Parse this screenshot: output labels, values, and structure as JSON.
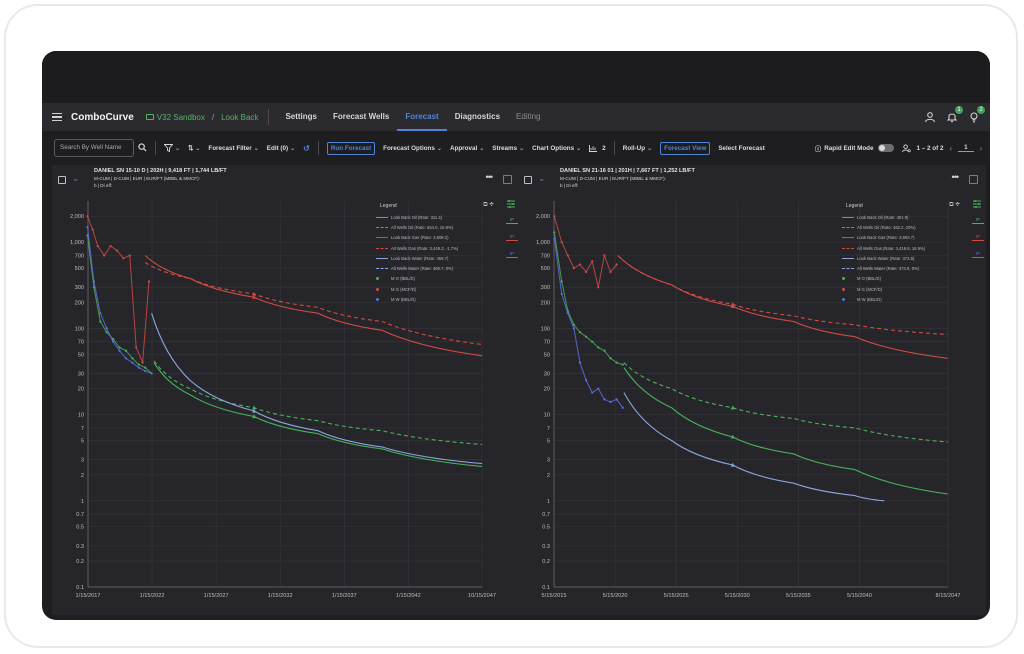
{
  "nav": {
    "brand": "ComboCurve",
    "project": "V32 Sandbox",
    "crumb_sep": "/",
    "scenario": "Look Back",
    "tabs": [
      "Settings",
      "Forecast Wells",
      "Forecast",
      "Diagnostics",
      "Editing"
    ],
    "active_tab": "Forecast",
    "badge1": "1",
    "badge2": "2"
  },
  "toolbar": {
    "search_placeholder": "Search By Well Name",
    "forecast_filter": "Forecast Filter",
    "edit": "Edit (0)",
    "run_forecast": "Run Forecast",
    "forecast_options": "Forecast Options",
    "approval": "Approval",
    "streams": "Streams",
    "chart_options": "Chart Options",
    "chart_count": "2",
    "roll_up": "Roll-Up",
    "forecast_view": "Forecast View",
    "select_forecast": "Select Forecast",
    "rapid_edit": "Rapid Edit Mode",
    "range": "1 – 2 of 2",
    "page": "1"
  },
  "panels": [
    {
      "title": "DANIEL SN 15-10 D | 202H | 9,418 FT | 1,744 LB/FT",
      "line2": "M-CUM | D-CUM | EUR | EUR/FT (MBBL & MMCF):",
      "b_label": "b | Di eff:",
      "legend_title": "Legend",
      "legend": [
        {
          "label": "Look Back Oil (Rate: 311.4)",
          "color": "#47b25b",
          "style": "solid"
        },
        {
          "label": "All Wells Oil (Rate: 554.0, 15.9%)",
          "color": "#47b25b",
          "style": "dash"
        },
        {
          "label": "Look Back Gas (Rate: 3,508.2)",
          "color": "#d24a43",
          "style": "solid"
        },
        {
          "label": "All Wells Gas (Rate: 3,449.3, -1.7%)",
          "color": "#d24a43",
          "style": "dash"
        },
        {
          "label": "Look Back Water (Rate: 459.7)",
          "color": "#8aa6e0",
          "style": "solid"
        },
        {
          "label": "All Wells Water (Rate: 469.7, 0%)",
          "color": "#8aa6e0",
          "style": "dash"
        },
        {
          "label": "M O (BBL/D)",
          "color": "#47b25b",
          "style": "dot"
        },
        {
          "label": "M G (MCF/D)",
          "color": "#d24a43",
          "style": "dot"
        },
        {
          "label": "M W (BBL/D)",
          "color": "#5a70e6",
          "style": "dot"
        }
      ],
      "x_ticks": [
        "1/15/2017",
        "1/15/2022",
        "1/15/2027",
        "1/15/2032",
        "1/15/2037",
        "1/15/2042",
        "10/15/2047"
      ]
    },
    {
      "title": "DANIEL SN 21-16 01 | 201H | 7,667 FT | 1,252 LB/FT",
      "line2": "M-CUM | D-CUM | EUR | EUR/FT (MBBL & MMCF):",
      "b_label": "b | Di eff:",
      "legend_title": "Legend",
      "legend": [
        {
          "label": "Look Back Oil (Rate: 401.9)",
          "color": "#47b25b",
          "style": "solid"
        },
        {
          "label": "All Wells Oil (Rate: 482.2, 20%)",
          "color": "#47b25b",
          "style": "dash"
        },
        {
          "label": "Look Back Gas (Rate: 3,693.7)",
          "color": "#d24a43",
          "style": "solid"
        },
        {
          "label": "All Wells Gas (Rate: 3,419.8, 16.9%)",
          "color": "#d24a43",
          "style": "dash"
        },
        {
          "label": "Look Back Water (Rate: 373.8)",
          "color": "#8aa6e0",
          "style": "solid"
        },
        {
          "label": "All Wells Water (Rate: 373.6, 0%)",
          "color": "#8aa6e0",
          "style": "dash"
        },
        {
          "label": "M O (BBL/D)",
          "color": "#47b25b",
          "style": "dot"
        },
        {
          "label": "M G (MCF/D)",
          "color": "#d24a43",
          "style": "dot"
        },
        {
          "label": "M W (BBL/D)",
          "color": "#5a70e6",
          "style": "dot"
        }
      ],
      "x_ticks": [
        "5/15/2015",
        "5/15/2020",
        "5/15/2025",
        "5/15/2030",
        "5/15/2035",
        "5/15/2040",
        "8/15/2047"
      ]
    }
  ],
  "y_ticks": [
    "2,000",
    "1,000",
    "700",
    "500",
    "300",
    "200",
    "100",
    "70",
    "50",
    "30",
    "20",
    "10",
    "7",
    "5",
    "3",
    "2",
    "1",
    "0.7",
    "0.5",
    "0.3",
    "0.2",
    "0.1"
  ],
  "y_tick_values": [
    2000,
    1000,
    700,
    500,
    300,
    200,
    100,
    70,
    50,
    30,
    20,
    10,
    7,
    5,
    3,
    2,
    1,
    0.7,
    0.5,
    0.3,
    0.2,
    0.1
  ],
  "side_labels": [
    "IP",
    "IP",
    "IP"
  ],
  "chart_data": [
    {
      "type": "line",
      "y_scale": "log",
      "ylim": [
        0.1,
        3000
      ],
      "x_range": [
        "1/15/2017",
        "10/15/2047"
      ],
      "series": [
        {
          "name": "Look Back Oil",
          "color": "#47b25b",
          "dash": false,
          "x": [
            2022.2,
            2025,
            2030,
            2035,
            2040,
            2047.8
          ],
          "y": [
            40,
            17,
            9.5,
            6,
            4,
            2.5
          ]
        },
        {
          "name": "All Wells Oil",
          "color": "#47b25b",
          "dash": true,
          "x": [
            2022.2,
            2025,
            2030,
            2035,
            2040,
            2047.8
          ],
          "y": [
            42,
            20,
            12,
            8.5,
            6.5,
            4.5
          ]
        },
        {
          "name": "Look Back Gas",
          "color": "#d24a43",
          "dash": false,
          "x": [
            2021.5,
            2025,
            2030,
            2035,
            2040,
            2047.8
          ],
          "y": [
            700,
            380,
            230,
            150,
            95,
            48
          ]
        },
        {
          "name": "All Wells Gas",
          "color": "#d24a43",
          "dash": true,
          "x": [
            2021.5,
            2025,
            2030,
            2035,
            2040,
            2047.8
          ],
          "y": [
            580,
            380,
            250,
            175,
            120,
            65
          ]
        },
        {
          "name": "Look Back Water",
          "color": "#8aa6e0",
          "dash": false,
          "x": [
            2022,
            2025,
            2030,
            2035,
            2040,
            2047.8
          ],
          "y": [
            150,
            25,
            11,
            6.5,
            4.2,
            2.7
          ]
        },
        {
          "name": "M O (BBL/D)",
          "color": "#47b25b",
          "dash": false,
          "scatter": true,
          "x": [
            2017,
            2017.5,
            2018,
            2018.5,
            2019,
            2019.5,
            2020,
            2020.5,
            2021,
            2021.5,
            2022
          ],
          "y": [
            1200,
            300,
            120,
            90,
            75,
            60,
            55,
            45,
            38,
            35,
            30
          ]
        },
        {
          "name": "M G (MCF/D)",
          "color": "#d24a43",
          "dash": false,
          "scatter": true,
          "x": [
            2017,
            2017.4,
            2017.8,
            2018.3,
            2018.8,
            2019.3,
            2019.8,
            2020.3,
            2020.8,
            2021.3,
            2021.8
          ],
          "y": [
            2000,
            1400,
            900,
            700,
            900,
            800,
            650,
            700,
            60,
            40,
            350
          ]
        },
        {
          "name": "M W (BBL/D)",
          "color": "#5a70e6",
          "dash": false,
          "scatter": true,
          "x": [
            2017,
            2017.5,
            2018,
            2018.5,
            2019,
            2019.5,
            2020,
            2020.5,
            2021,
            2021.5,
            2022
          ],
          "y": [
            1500,
            350,
            150,
            100,
            70,
            55,
            45,
            40,
            35,
            32,
            30
          ]
        }
      ]
    },
    {
      "type": "line",
      "y_scale": "log",
      "ylim": [
        0.1,
        3000
      ],
      "x_range": [
        "5/15/2015",
        "8/15/2047"
      ],
      "series": [
        {
          "name": "Look Back Oil",
          "color": "#47b25b",
          "dash": false,
          "x": [
            2021.1,
            2025,
            2030,
            2035,
            2040,
            2047.6
          ],
          "y": [
            35,
            12,
            5.5,
            3.5,
            2.3,
            1.2
          ]
        },
        {
          "name": "All Wells Oil",
          "color": "#47b25b",
          "dash": true,
          "x": [
            2021.1,
            2025,
            2030,
            2035,
            2040,
            2047.6
          ],
          "y": [
            40,
            20,
            12,
            9,
            7,
            4.8
          ]
        },
        {
          "name": "Look Back Gas",
          "color": "#d24a43",
          "dash": false,
          "x": [
            2020.6,
            2025,
            2030,
            2035,
            2040,
            2047.6
          ],
          "y": [
            700,
            320,
            180,
            120,
            80,
            45
          ]
        },
        {
          "name": "All Wells Gas",
          "color": "#d24a43",
          "dash": true,
          "x": [
            2020.6,
            2025,
            2030,
            2035,
            2040,
            2047.6
          ],
          "y": [
            700,
            320,
            190,
            140,
            110,
            85
          ]
        },
        {
          "name": "Look Back Water",
          "color": "#8aa6e0",
          "dash": false,
          "x": [
            2021.1,
            2025,
            2030,
            2035,
            2040,
            2042.4
          ],
          "y": [
            18,
            5,
            2.6,
            1.6,
            1.15,
            1
          ]
        },
        {
          "name": "M O (BBL/D)",
          "color": "#47b25b",
          "dash": false,
          "scatter": true,
          "x": [
            2015.4,
            2016,
            2016.5,
            2017,
            2017.5,
            2018,
            2018.5,
            2019,
            2019.5,
            2020,
            2020.5,
            2021
          ],
          "y": [
            1300,
            350,
            160,
            110,
            90,
            80,
            70,
            60,
            55,
            45,
            40,
            38
          ]
        },
        {
          "name": "M G (MCF/D)",
          "color": "#d24a43",
          "dash": false,
          "scatter": true,
          "x": [
            2015.4,
            2016,
            2016.5,
            2017,
            2017.5,
            2018,
            2018.5,
            2019,
            2019.5,
            2020,
            2020.5
          ],
          "y": [
            2000,
            1000,
            700,
            500,
            550,
            450,
            600,
            300,
            700,
            450,
            550
          ]
        },
        {
          "name": "M W (BBL/D)",
          "color": "#5a70e6",
          "dash": false,
          "scatter": true,
          "x": [
            2015.4,
            2016,
            2016.5,
            2017,
            2017.5,
            2018,
            2018.5,
            2019,
            2019.5,
            2020,
            2020.5,
            2021
          ],
          "y": [
            1100,
            250,
            150,
            100,
            40,
            25,
            18,
            20,
            15,
            14,
            15,
            12
          ]
        }
      ]
    }
  ]
}
